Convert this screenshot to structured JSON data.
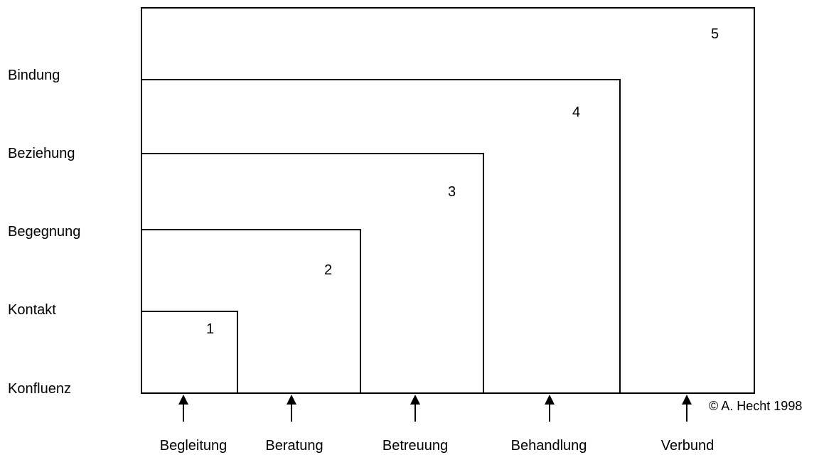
{
  "levels": {
    "konfluenz": "Konfluenz",
    "kontakt": "Kontakt",
    "begegnung": "Begegnung",
    "beziehung": "Beziehung",
    "bindung": "Bindung"
  },
  "services": {
    "begleitung": "Begleitung",
    "beratung": "Beratung",
    "betreuung": "Betreuung",
    "behandlung": "Behandlung",
    "verbund": "Verbund"
  },
  "box_numbers": {
    "one": "1",
    "two": "2",
    "three": "3",
    "four": "4",
    "five": "5"
  },
  "copyright": "© A. Hecht 1998",
  "colors": {
    "line": "#000000",
    "background": "#ffffff"
  }
}
